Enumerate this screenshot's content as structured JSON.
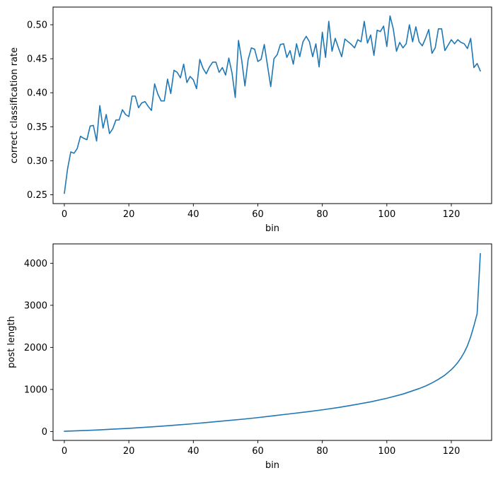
{
  "chart_data": [
    {
      "type": "line",
      "title": "",
      "xlabel": "bin",
      "ylabel": "correct classification rate",
      "xlim": [
        -3.5,
        132.5
      ],
      "ylim": [
        0.237,
        0.526
      ],
      "xticks": [
        0,
        20,
        40,
        60,
        80,
        100,
        120
      ],
      "yticks": [
        0.25,
        0.3,
        0.35,
        0.4,
        0.45,
        0.5
      ],
      "ytick_labels": [
        "0.25",
        "0.30",
        "0.35",
        "0.40",
        "0.45",
        "0.50"
      ],
      "grid": false,
      "series": [
        {
          "color": "#1f77b4",
          "x": [
            0,
            1,
            2,
            3,
            4,
            5,
            6,
            7,
            8,
            9,
            10,
            11,
            12,
            13,
            14,
            15,
            16,
            17,
            18,
            19,
            20,
            21,
            22,
            23,
            24,
            25,
            26,
            27,
            28,
            29,
            30,
            31,
            32,
            33,
            34,
            35,
            36,
            37,
            38,
            39,
            40,
            41,
            42,
            43,
            44,
            45,
            46,
            47,
            48,
            49,
            50,
            51,
            52,
            53,
            54,
            55,
            56,
            57,
            58,
            59,
            60,
            61,
            62,
            63,
            64,
            65,
            66,
            67,
            68,
            69,
            70,
            71,
            72,
            73,
            74,
            75,
            76,
            77,
            78,
            79,
            80,
            81,
            82,
            83,
            84,
            85,
            86,
            87,
            88,
            89,
            90,
            91,
            92,
            93,
            94,
            95,
            96,
            97,
            98,
            99,
            100,
            101,
            102,
            103,
            104,
            105,
            106,
            107,
            108,
            109,
            110,
            111,
            112,
            113,
            114,
            115,
            116,
            117,
            118,
            119,
            120,
            121,
            122,
            123,
            124,
            125,
            126,
            127,
            128,
            129
          ],
          "y": [
            0.252,
            0.288,
            0.313,
            0.311,
            0.318,
            0.336,
            0.333,
            0.331,
            0.351,
            0.352,
            0.329,
            0.381,
            0.348,
            0.368,
            0.34,
            0.347,
            0.36,
            0.36,
            0.375,
            0.368,
            0.365,
            0.395,
            0.395,
            0.378,
            0.385,
            0.387,
            0.38,
            0.374,
            0.413,
            0.398,
            0.388,
            0.388,
            0.42,
            0.399,
            0.433,
            0.43,
            0.422,
            0.442,
            0.415,
            0.424,
            0.419,
            0.406,
            0.449,
            0.436,
            0.428,
            0.438,
            0.445,
            0.445,
            0.43,
            0.437,
            0.426,
            0.451,
            0.429,
            0.393,
            0.477,
            0.448,
            0.41,
            0.449,
            0.466,
            0.464,
            0.446,
            0.449,
            0.471,
            0.44,
            0.409,
            0.45,
            0.456,
            0.471,
            0.472,
            0.452,
            0.462,
            0.442,
            0.472,
            0.453,
            0.475,
            0.483,
            0.475,
            0.453,
            0.472,
            0.438,
            0.489,
            0.452,
            0.505,
            0.461,
            0.48,
            0.466,
            0.453,
            0.479,
            0.475,
            0.471,
            0.466,
            0.478,
            0.475,
            0.505,
            0.473,
            0.485,
            0.455,
            0.492,
            0.49,
            0.498,
            0.468,
            0.513,
            0.494,
            0.461,
            0.474,
            0.466,
            0.472,
            0.5,
            0.475,
            0.497,
            0.475,
            0.469,
            0.48,
            0.493,
            0.458,
            0.466,
            0.494,
            0.494,
            0.462,
            0.47,
            0.478,
            0.472,
            0.478,
            0.474,
            0.472,
            0.465,
            0.48,
            0.437,
            0.443,
            0.432
          ]
        }
      ]
    },
    {
      "type": "line",
      "title": "",
      "xlabel": "bin",
      "ylabel": "post length",
      "xlim": [
        -3.5,
        132.5
      ],
      "ylim": [
        -212,
        4460
      ],
      "xticks": [
        0,
        20,
        40,
        60,
        80,
        100,
        120
      ],
      "yticks": [
        0,
        1000,
        2000,
        3000,
        4000
      ],
      "ytick_labels": [
        "0",
        "1000",
        "2000",
        "3000",
        "4000"
      ],
      "grid": false,
      "series": [
        {
          "color": "#1f77b4",
          "x": [
            0,
            5,
            10,
            15,
            20,
            25,
            30,
            35,
            40,
            45,
            50,
            55,
            60,
            65,
            70,
            75,
            80,
            85,
            90,
            95,
            100,
            105,
            110,
            112,
            114,
            116,
            118,
            120,
            121,
            122,
            123,
            124,
            125,
            126,
            127,
            128,
            129
          ],
          "y": [
            5,
            20,
            35,
            55,
            75,
            100,
            125,
            155,
            185,
            220,
            255,
            290,
            330,
            375,
            420,
            465,
            515,
            570,
            635,
            705,
            790,
            890,
            1020,
            1080,
            1155,
            1240,
            1340,
            1470,
            1550,
            1640,
            1750,
            1880,
            2040,
            2250,
            2510,
            2800,
            4230
          ]
        }
      ]
    }
  ]
}
